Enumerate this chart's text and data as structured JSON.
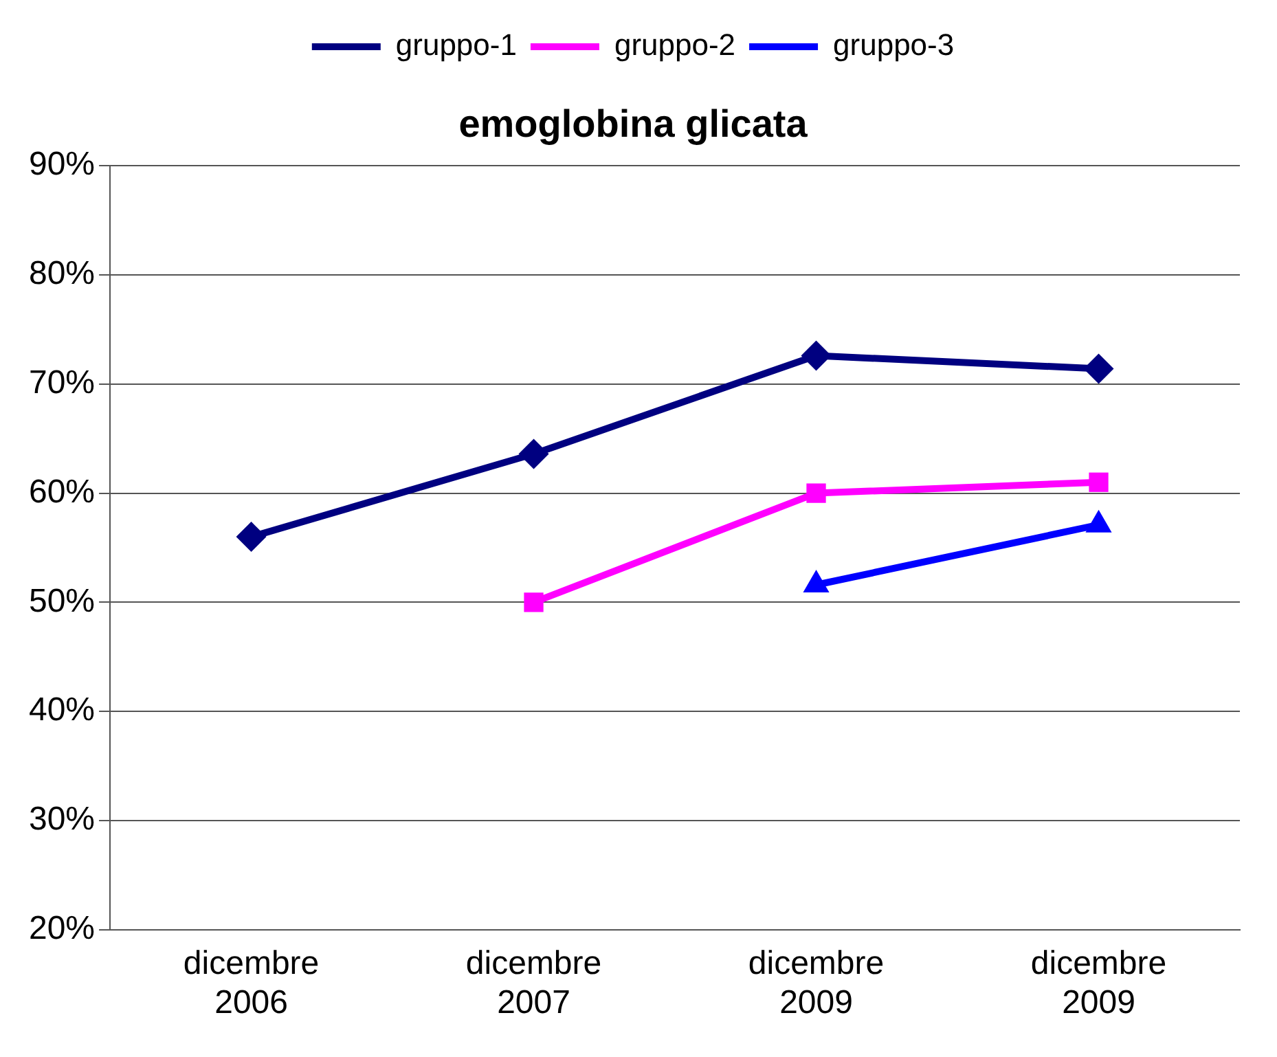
{
  "chart_data": {
    "type": "line",
    "title": "emoglobina glicata",
    "categories": [
      "dicembre\n2006",
      "dicembre\n2007",
      "dicembre\n2009",
      "dicembre\n2009"
    ],
    "series": [
      {
        "name": "gruppo-1",
        "color": "#000080",
        "marker": "diamond",
        "values": [
          56,
          63.6,
          72.6,
          71.4
        ]
      },
      {
        "name": "gruppo-2",
        "color": "#ff00ff",
        "marker": "square",
        "values": [
          null,
          50,
          60,
          61
        ]
      },
      {
        "name": "gruppo-3",
        "color": "#0000ff",
        "marker": "triangle",
        "values": [
          null,
          null,
          51.6,
          57.1
        ]
      }
    ],
    "ylim": [
      20,
      90
    ],
    "yticks": [
      {
        "value": 20,
        "label": "20%"
      },
      {
        "value": 30,
        "label": "30%"
      },
      {
        "value": 40,
        "label": "40%"
      },
      {
        "value": 50,
        "label": "50%"
      },
      {
        "value": 60,
        "label": "60%"
      },
      {
        "value": 70,
        "label": "70%"
      },
      {
        "value": 80,
        "label": "80%"
      },
      {
        "value": 90,
        "label": "90%"
      }
    ],
    "grid": "y",
    "legend": "top",
    "line_style": "solid"
  }
}
